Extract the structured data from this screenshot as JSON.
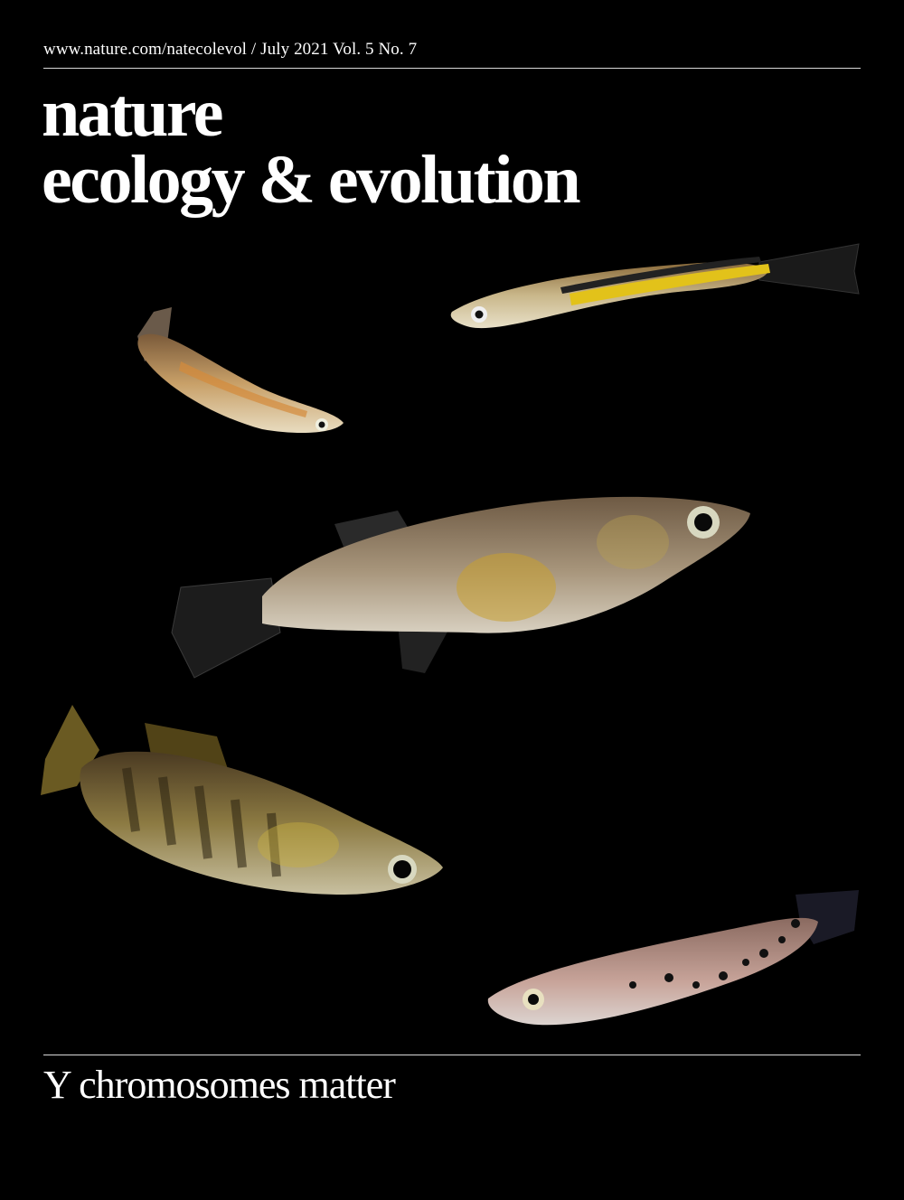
{
  "header": {
    "issue_line": "www.nature.com/natecolevol / July 2021 Vol. 5 No. 7"
  },
  "masthead": {
    "line1": "nature",
    "line2": "ecology & evolution"
  },
  "cover_image": {
    "subject": "fish",
    "count": 5,
    "background_color": "#000000"
  },
  "coverline": "Y chromosomes matter"
}
